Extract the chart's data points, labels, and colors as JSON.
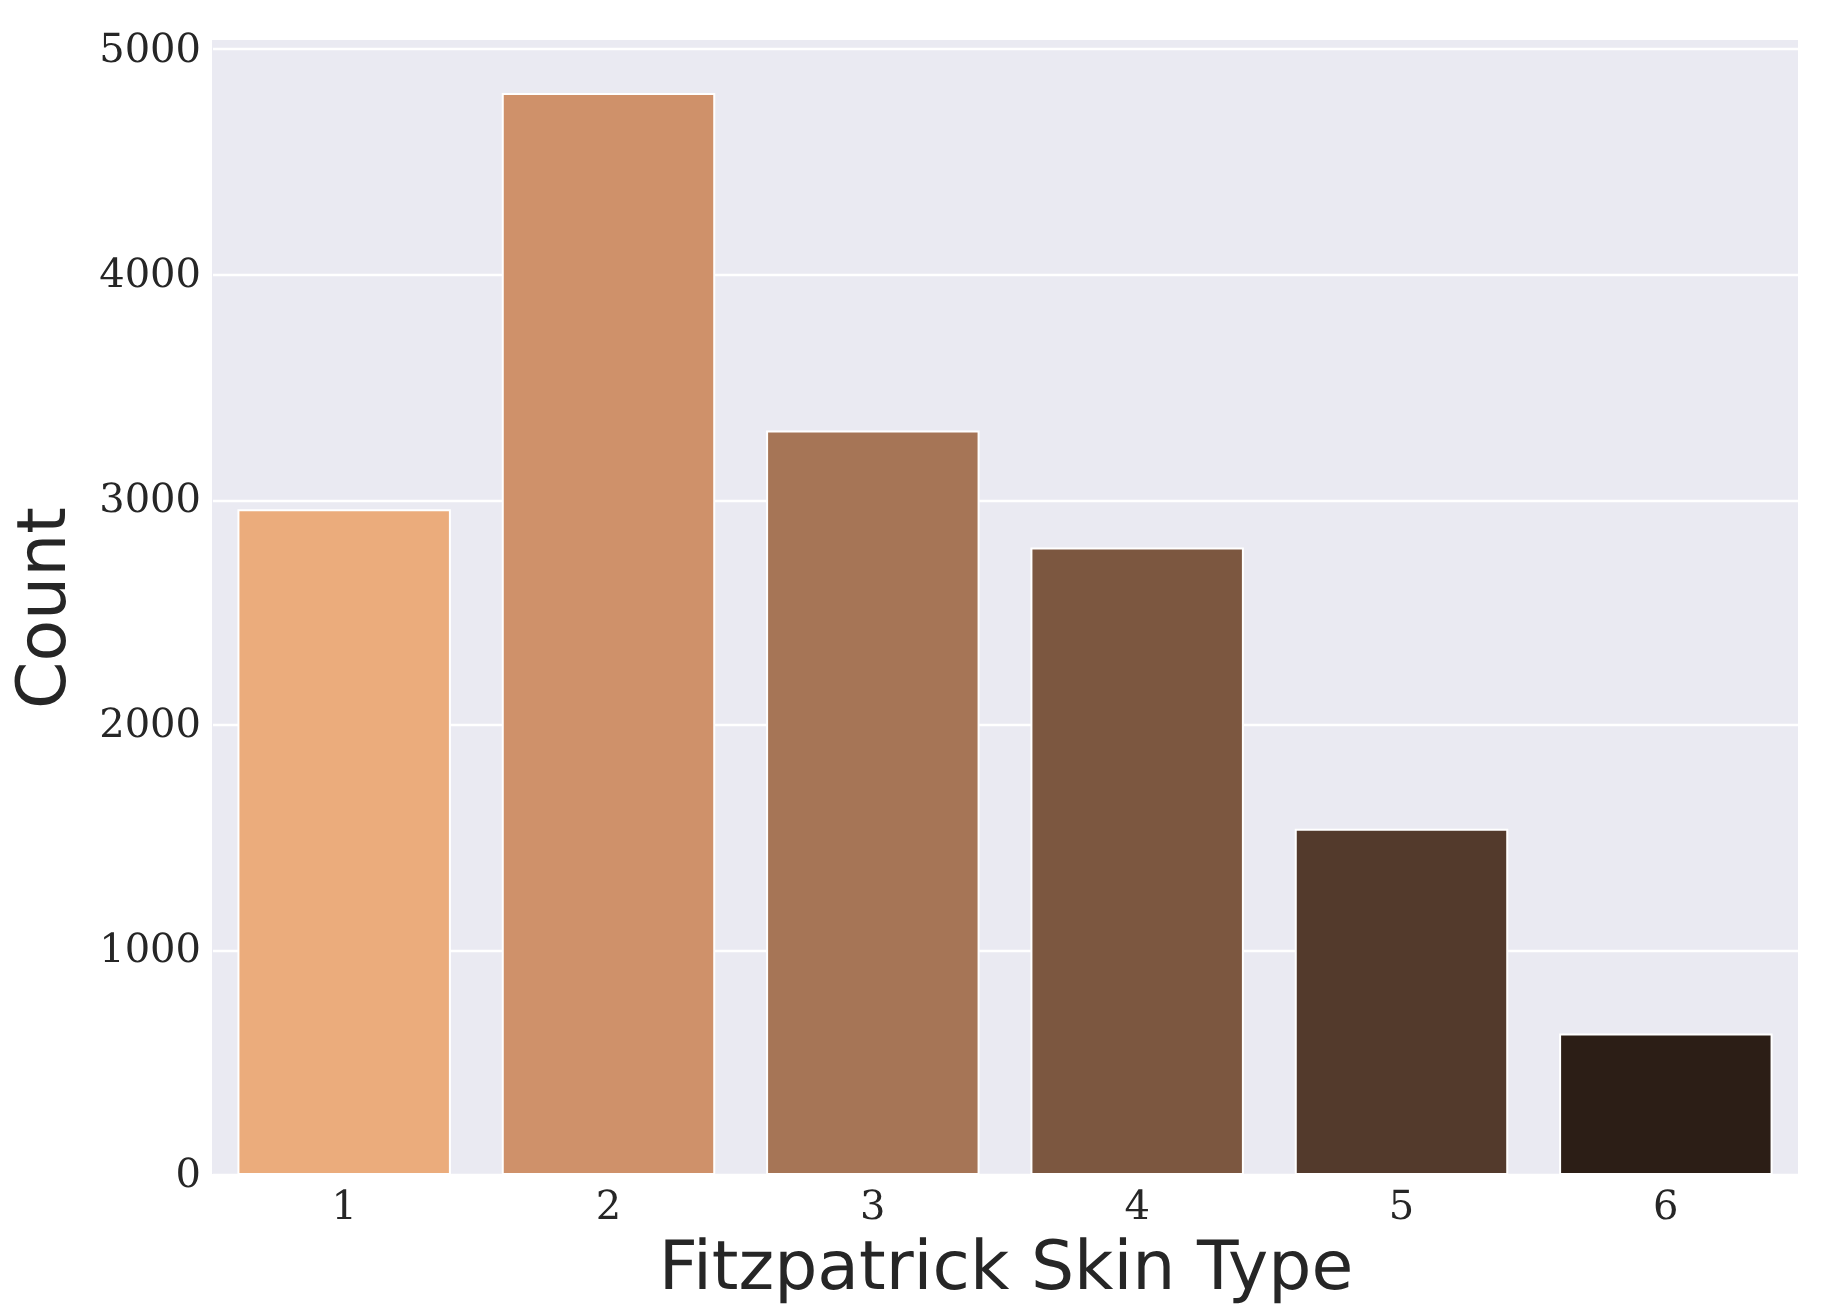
{
  "chart_data": {
    "type": "bar",
    "xlabel": "Fitzpatrick Skin Type",
    "ylabel": "Count",
    "categories": [
      "1",
      "2",
      "3",
      "4",
      "5",
      "6"
    ],
    "values": [
      2950,
      4800,
      3300,
      2780,
      1530,
      620
    ],
    "colors": [
      "#ebac7c",
      "#cf916a",
      "#a67556",
      "#7c5740",
      "#533a2c",
      "#2c1e16"
    ],
    "ylim": [
      0,
      5040
    ],
    "yticks": [
      0,
      1000,
      2000,
      3000,
      4000,
      5000
    ],
    "grid": "y"
  }
}
